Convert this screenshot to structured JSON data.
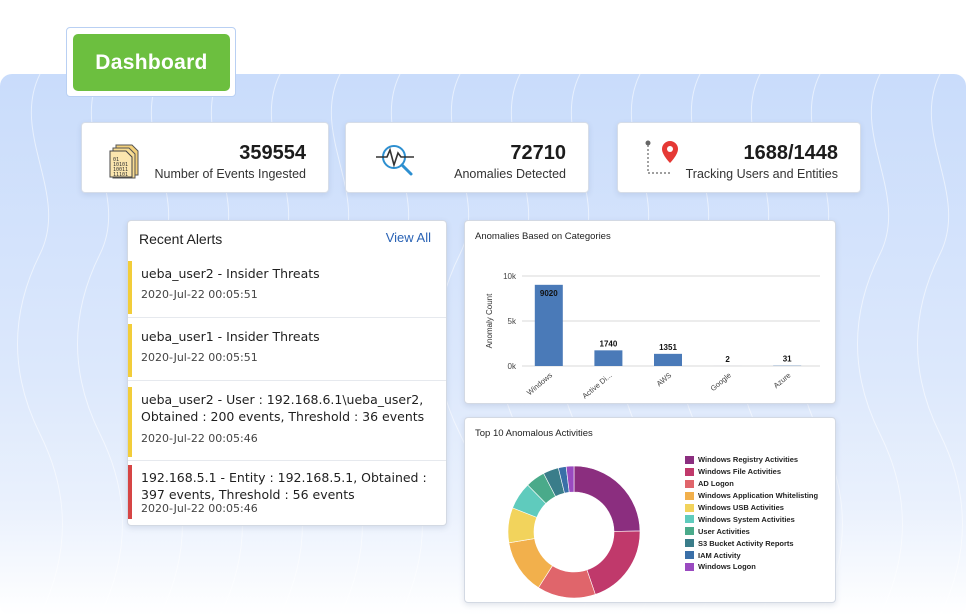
{
  "header": {
    "dashboard_label": "Dashboard"
  },
  "stats": [
    {
      "value": "359554",
      "label": "Number of Events Ingested",
      "icon": "binary-file-icon"
    },
    {
      "value": "72710",
      "label": "Anomalies Detected",
      "icon": "magnifier-pulse-icon"
    },
    {
      "value": "1688/1448",
      "label": "Tracking Users and Entities",
      "icon": "location-pin-icon"
    }
  ],
  "alerts": {
    "title": "Recent Alerts",
    "view_all": "View All",
    "items": [
      {
        "message": "ueba_user2 - Insider Threats",
        "time": "2020-Jul-22 00:05:51",
        "severity_color": "#f2cd3a"
      },
      {
        "message": "ueba_user1 - Insider Threats",
        "time": "2020-Jul-22 00:05:51",
        "severity_color": "#f2cd3a"
      },
      {
        "message": "ueba_user2 - User : 192.168.6.1\\ueba_user2, Obtained : 200 events, Threshold : 36 events",
        "time": "2020-Jul-22 00:05:46",
        "severity_color": "#f2cd3a"
      },
      {
        "message": "192.168.5.1 - Entity : 192.168.5.1, Obtained : 397 events, Threshold : 56 events",
        "time": "2020-Jul-22 00:05:46",
        "severity_color": "#d64545"
      }
    ]
  },
  "chart_data": [
    {
      "type": "bar",
      "title": "Anomalies Based on Categories",
      "ylabel": "Anomaly Count",
      "categories": [
        "Windows",
        "Active Di...",
        "AWS",
        "Google",
        "Azure"
      ],
      "values": [
        9020,
        1740,
        1351,
        2,
        31
      ],
      "ylim": [
        0,
        10000
      ],
      "yticks": [
        "0k",
        "5k",
        "10k"
      ],
      "grid": true,
      "color": "#4a7ab8"
    },
    {
      "type": "pie",
      "title": "Top 10 Anomalous Activities",
      "legend_position": "right",
      "labels": [
        "Windows Registry Activities",
        "Windows File Activities",
        "AD Logon",
        "Windows Application Whitelisting",
        "Windows USB Activities",
        "Windows System Activities",
        "User Activities",
        "S3 Bucket Activity Reports",
        "IAM Activity",
        "Windows Logon"
      ],
      "values": [
        26,
        21,
        15,
        14,
        9,
        7,
        5,
        4,
        2,
        2
      ],
      "colors": [
        "#8b2e7f",
        "#c0396b",
        "#e0656b",
        "#f2b04c",
        "#f2d35c",
        "#5fcbbd",
        "#4aaa8a",
        "#3a7d8a",
        "#3a6fa8",
        "#9a4ac0"
      ]
    }
  ]
}
